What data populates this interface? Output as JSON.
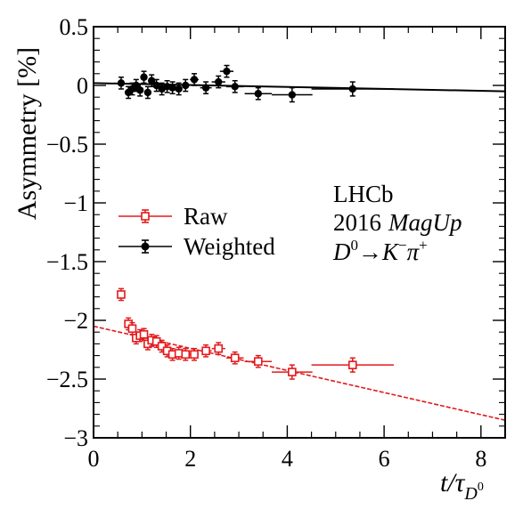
{
  "chart_data": {
    "type": "scatter",
    "xlim": [
      0,
      8.5
    ],
    "ylim": [
      -3,
      0.5
    ],
    "xticks": [
      {
        "value": 0,
        "label": "0"
      },
      {
        "value": 2,
        "label": "2"
      },
      {
        "value": 4,
        "label": "4"
      },
      {
        "value": 6,
        "label": "6"
      },
      {
        "value": 8,
        "label": "8"
      }
    ],
    "yticks": [
      {
        "value": 0.5,
        "label": "0.5"
      },
      {
        "value": 0,
        "label": "0"
      },
      {
        "value": -0.5,
        "label": "−0.5"
      },
      {
        "value": -1,
        "label": "−1"
      },
      {
        "value": -1.5,
        "label": "−1.5"
      },
      {
        "value": -2,
        "label": "−2"
      },
      {
        "value": -2.5,
        "label": "−2.5"
      },
      {
        "value": -3,
        "label": "−3"
      }
    ],
    "ylabel": "Asymmetry [%]",
    "xlabel_main": "t/",
    "xlabel_tau": "τ",
    "xlabel_sub": "D",
    "xlabel_subsup": "0",
    "annotation": {
      "line1": "LHCb",
      "line2_a": "2016",
      "line2_b": "MagUp",
      "decay_D": "D",
      "decay_D_sup": "0",
      "decay_arrow": "→",
      "decay_K": "K",
      "decay_K_sup": "−",
      "decay_pi": "π",
      "decay_pi_sup": "+"
    },
    "grid": false,
    "legend_position": "middle-left",
    "series": [
      {
        "name": "Raw",
        "color": "#e31a1c",
        "marker": "open-square",
        "points": [
          {
            "x": 0.57,
            "y": -1.78,
            "xerr": 0.05,
            "yerr": 0.05
          },
          {
            "x": 0.72,
            "y": -2.03,
            "xerr": 0.05,
            "yerr": 0.05
          },
          {
            "x": 0.8,
            "y": -2.07,
            "xerr": 0.04,
            "yerr": 0.05
          },
          {
            "x": 0.88,
            "y": -2.15,
            "xerr": 0.04,
            "yerr": 0.05
          },
          {
            "x": 0.96,
            "y": -2.13,
            "xerr": 0.04,
            "yerr": 0.05
          },
          {
            "x": 1.04,
            "y": -2.12,
            "xerr": 0.04,
            "yerr": 0.05
          },
          {
            "x": 1.12,
            "y": -2.2,
            "xerr": 0.04,
            "yerr": 0.05
          },
          {
            "x": 1.2,
            "y": -2.17,
            "xerr": 0.04,
            "yerr": 0.05
          },
          {
            "x": 1.3,
            "y": -2.18,
            "xerr": 0.05,
            "yerr": 0.05
          },
          {
            "x": 1.41,
            "y": -2.22,
            "xerr": 0.05,
            "yerr": 0.05
          },
          {
            "x": 1.52,
            "y": -2.26,
            "xerr": 0.05,
            "yerr": 0.05
          },
          {
            "x": 1.63,
            "y": -2.29,
            "xerr": 0.05,
            "yerr": 0.05
          },
          {
            "x": 1.76,
            "y": -2.28,
            "xerr": 0.06,
            "yerr": 0.05
          },
          {
            "x": 1.9,
            "y": -2.29,
            "xerr": 0.07,
            "yerr": 0.05
          },
          {
            "x": 2.08,
            "y": -2.29,
            "xerr": 0.09,
            "yerr": 0.05
          },
          {
            "x": 2.32,
            "y": -2.26,
            "xerr": 0.12,
            "yerr": 0.05
          },
          {
            "x": 2.58,
            "y": -2.24,
            "xerr": 0.14,
            "yerr": 0.05
          },
          {
            "x": 2.92,
            "y": -2.32,
            "xerr": 0.18,
            "yerr": 0.05
          },
          {
            "x": 3.4,
            "y": -2.35,
            "xerr": 0.28,
            "yerr": 0.05
          },
          {
            "x": 4.1,
            "y": -2.44,
            "xerr": 0.42,
            "yerr": 0.06
          },
          {
            "x": 5.35,
            "y": -2.38,
            "xerr": 0.85,
            "yerr": 0.06
          }
        ],
        "fit": {
          "x0": 0.0,
          "y0": -2.05,
          "x1": 8.5,
          "y1": -2.85
        }
      },
      {
        "name": "Weighted",
        "color": "#000000",
        "marker": "filled-circle",
        "points": [
          {
            "x": 0.57,
            "y": 0.02,
            "xerr": 0.05,
            "yerr": 0.05
          },
          {
            "x": 0.72,
            "y": -0.06,
            "xerr": 0.05,
            "yerr": 0.05
          },
          {
            "x": 0.8,
            "y": -0.03,
            "xerr": 0.04,
            "yerr": 0.05
          },
          {
            "x": 0.88,
            "y": 0.0,
            "xerr": 0.04,
            "yerr": 0.05
          },
          {
            "x": 0.96,
            "y": -0.04,
            "xerr": 0.04,
            "yerr": 0.05
          },
          {
            "x": 1.04,
            "y": 0.07,
            "xerr": 0.04,
            "yerr": 0.05
          },
          {
            "x": 1.12,
            "y": -0.06,
            "xerr": 0.04,
            "yerr": 0.05
          },
          {
            "x": 1.2,
            "y": 0.04,
            "xerr": 0.04,
            "yerr": 0.05
          },
          {
            "x": 1.3,
            "y": 0.0,
            "xerr": 0.05,
            "yerr": 0.05
          },
          {
            "x": 1.41,
            "y": -0.03,
            "xerr": 0.05,
            "yerr": 0.05
          },
          {
            "x": 1.52,
            "y": -0.01,
            "xerr": 0.05,
            "yerr": 0.05
          },
          {
            "x": 1.63,
            "y": -0.02,
            "xerr": 0.05,
            "yerr": 0.05
          },
          {
            "x": 1.76,
            "y": -0.03,
            "xerr": 0.06,
            "yerr": 0.05
          },
          {
            "x": 1.9,
            "y": 0.0,
            "xerr": 0.07,
            "yerr": 0.05
          },
          {
            "x": 2.08,
            "y": 0.05,
            "xerr": 0.09,
            "yerr": 0.05
          },
          {
            "x": 2.32,
            "y": -0.02,
            "xerr": 0.12,
            "yerr": 0.05
          },
          {
            "x": 2.58,
            "y": 0.03,
            "xerr": 0.14,
            "yerr": 0.05
          },
          {
            "x": 2.75,
            "y": 0.12,
            "xerr": 0.14,
            "yerr": 0.05
          },
          {
            "x": 2.92,
            "y": -0.01,
            "xerr": 0.18,
            "yerr": 0.05
          },
          {
            "x": 3.4,
            "y": -0.07,
            "xerr": 0.28,
            "yerr": 0.05
          },
          {
            "x": 4.1,
            "y": -0.08,
            "xerr": 0.42,
            "yerr": 0.06
          },
          {
            "x": 5.35,
            "y": -0.03,
            "xerr": 0.85,
            "yerr": 0.06
          }
        ],
        "fit": {
          "x0": 0.0,
          "y0": 0.02,
          "x1": 8.5,
          "y1": -0.05
        }
      }
    ]
  }
}
